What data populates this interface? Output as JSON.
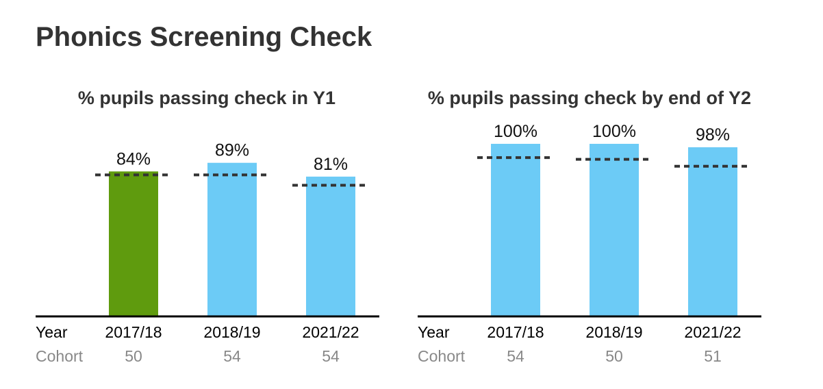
{
  "page": {
    "title": "Phonics Screening Check"
  },
  "colors": {
    "highlight": "#5f9b0e",
    "bar": "#6ccbf6",
    "benchmark": "#333333",
    "axis": "#000000",
    "cohort_text": "#888888"
  },
  "chart_data": [
    {
      "type": "bar",
      "title": "% pupils passing check in Y1",
      "row_labels": {
        "year": "Year",
        "cohort": "Cohort"
      },
      "categories": [
        "2017/18",
        "2018/19",
        "2021/22"
      ],
      "values": [
        84,
        89,
        81
      ],
      "value_labels": [
        "84%",
        "89%",
        "81%"
      ],
      "benchmark": [
        82,
        82,
        76
      ],
      "cohort": [
        "50",
        "54",
        "54"
      ],
      "highlight_index": 0,
      "ylim": [
        0,
        100
      ]
    },
    {
      "type": "bar",
      "title": "% pupils passing check by end of Y2",
      "row_labels": {
        "year": "Year",
        "cohort": "Cohort"
      },
      "categories": [
        "2017/18",
        "2018/19",
        "2021/22"
      ],
      "values": [
        100,
        100,
        98
      ],
      "value_labels": [
        "100%",
        "100%",
        "98%"
      ],
      "benchmark": [
        92,
        91,
        87
      ],
      "cohort": [
        "54",
        "50",
        "51"
      ],
      "highlight_index": -1,
      "ylim": [
        0,
        100
      ]
    }
  ]
}
